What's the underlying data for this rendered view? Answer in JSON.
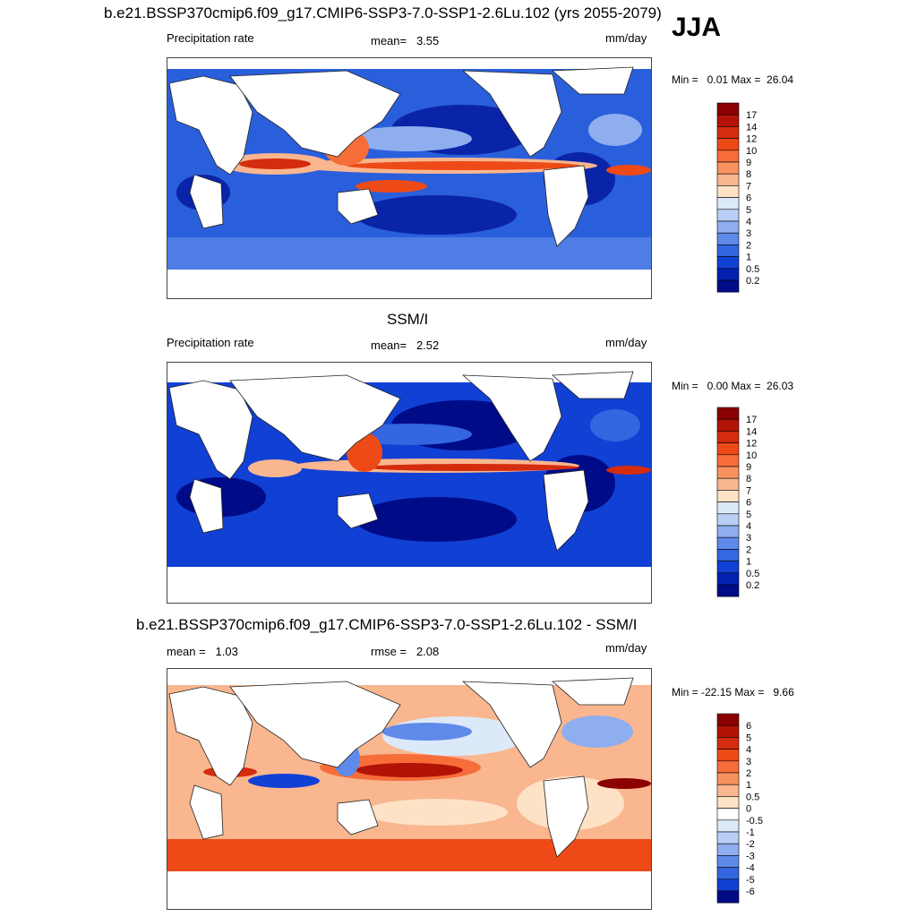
{
  "season": "JJA",
  "panels": [
    {
      "title": "b.e21.BSSP370cmip6.f09_g17.CMIP6-SSP3-7.0-SSP1-2.6Lu.102 (yrs 2055-2079)",
      "left_label": "Precipitation rate",
      "center_label": "mean=   3.55",
      "units": "mm/day",
      "minmax": "Min =   0.01 Max =  26.04",
      "colorbar_labels": [
        "17",
        "14",
        "12",
        "10",
        "9",
        "8",
        "7",
        "6",
        "5",
        "4",
        "3",
        "2",
        "1",
        "0.5",
        "0.2"
      ],
      "colorbar_colors": [
        "#8b0000",
        "#b31307",
        "#d42c0e",
        "#ee4a18",
        "#f66d39",
        "#f7925e",
        "#f9b68f",
        "#fde2c6",
        "#dce9f8",
        "#b9cff5",
        "#8eaef0",
        "#5f8ae9",
        "#3366e0",
        "#1140d4",
        "#0420b0",
        "#000b88"
      ]
    },
    {
      "title": "SSM/I",
      "left_label": "Precipitation rate",
      "center_label": "mean=   2.52",
      "units": "mm/day",
      "minmax": "Min =   0.00 Max =  26.03",
      "colorbar_labels": [
        "17",
        "14",
        "12",
        "10",
        "9",
        "8",
        "7",
        "6",
        "5",
        "4",
        "3",
        "2",
        "1",
        "0.5",
        "0.2"
      ],
      "colorbar_colors": [
        "#8b0000",
        "#b31307",
        "#d42c0e",
        "#ee4a18",
        "#f66d39",
        "#f7925e",
        "#f9b68f",
        "#fde2c6",
        "#dce9f8",
        "#b9cff5",
        "#8eaef0",
        "#5f8ae9",
        "#3366e0",
        "#1140d4",
        "#0420b0",
        "#000b88"
      ]
    },
    {
      "title": "b.e21.BSSP370cmip6.f09_g17.CMIP6-SSP3-7.0-SSP1-2.6Lu.102 - SSM/I",
      "left_label": "mean =   1.03",
      "center_label": "rmse =   2.08",
      "units": "mm/day",
      "minmax": "Min = -22.15 Max =   9.66",
      "colorbar_labels": [
        "6",
        "5",
        "4",
        "3",
        "2",
        "1",
        "0.5",
        "0",
        "-0.5",
        "-1",
        "-2",
        "-3",
        "-4",
        "-5",
        "-6"
      ],
      "colorbar_colors": [
        "#8b0000",
        "#b31307",
        "#d42c0e",
        "#ee4a18",
        "#f66d39",
        "#f7925e",
        "#f9b68f",
        "#fde2c6",
        "#ffffff",
        "#dce9f8",
        "#b9cff5",
        "#8eaef0",
        "#5f8ae9",
        "#3366e0",
        "#1140d4",
        "#000b88"
      ]
    }
  ]
}
